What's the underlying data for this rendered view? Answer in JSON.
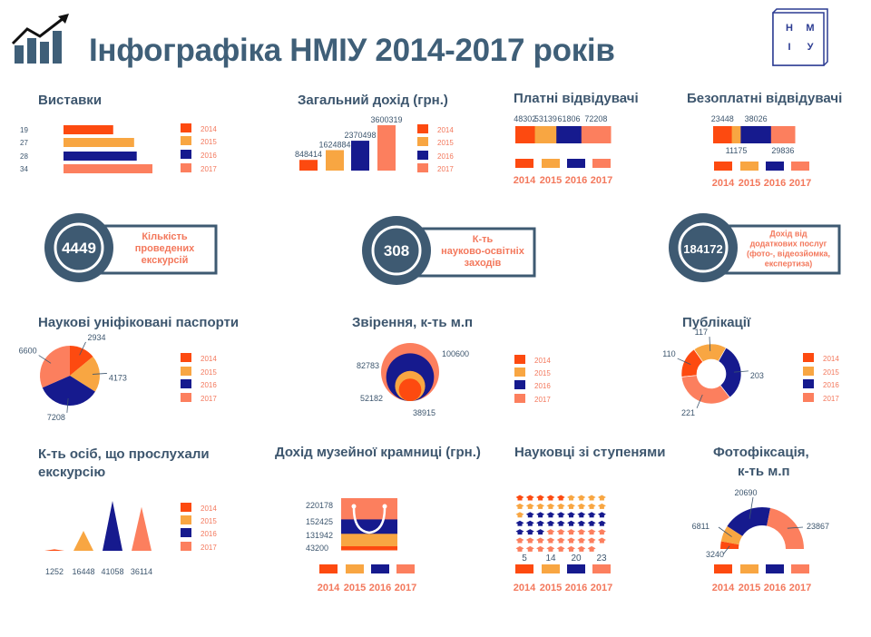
{
  "header": {
    "title": "Інфографіка НМІУ 2014-2017 років",
    "logo_letters": [
      "Н",
      "М",
      "І",
      "У"
    ],
    "icon": "growth-chart-icon"
  },
  "colors": {
    "series": [
      "#fd4a10",
      "#f8a642",
      "#161a8e",
      "#fc7f5e"
    ],
    "title_text": "#3d566e",
    "legend_text": "#f3785c",
    "badge": "#3e5a72"
  },
  "legend_labels": [
    "2014",
    "2015",
    "2016",
    "2017"
  ],
  "stats": [
    {
      "value": "4449",
      "lines": [
        "Кількість",
        "проведених",
        "екскурсій"
      ]
    },
    {
      "value": "308",
      "lines": [
        "К-ть",
        "науково-освітніх",
        "заходів"
      ]
    },
    {
      "value": "184172",
      "lines": [
        "Дохід від",
        "додаткових послуг",
        "(фото-, відеозйомка,",
        "експертиза)"
      ]
    }
  ],
  "chart_data": [
    {
      "id": "exhibitions",
      "type": "bar",
      "orientation": "horizontal",
      "title": "Виставки",
      "categories": [
        "2014",
        "2015",
        "2016",
        "2017"
      ],
      "values": [
        19,
        27,
        28,
        34
      ],
      "legend": "right"
    },
    {
      "id": "income",
      "type": "bar",
      "title": "Загальний дохід (грн.)",
      "categories": [
        "2014",
        "2015",
        "2016",
        "2017"
      ],
      "values": [
        848414,
        1624884,
        2370498,
        3600319
      ],
      "legend": "right"
    },
    {
      "id": "paid",
      "type": "bar",
      "stacked": true,
      "orientation": "horizontal",
      "title": "Платні відвідувачі",
      "categories": [
        "2014",
        "2015",
        "2016",
        "2017"
      ],
      "values": [
        48302,
        53139,
        61806,
        72208
      ],
      "legend": "bottom"
    },
    {
      "id": "free",
      "type": "bar",
      "stacked": true,
      "orientation": "horizontal",
      "title": "Безоплатні відвідувачі",
      "categories": [
        "2014",
        "2015",
        "2016",
        "2017"
      ],
      "values": [
        23448,
        11175,
        38026,
        29836
      ],
      "legend": "bottom"
    },
    {
      "id": "passports",
      "type": "pie",
      "title": "Наукові уніфіковані паспорти",
      "categories": [
        "2014",
        "2015",
        "2016",
        "2017"
      ],
      "values": [
        2934,
        4173,
        7208,
        6600
      ],
      "legend": "right"
    },
    {
      "id": "verification",
      "type": "pie",
      "style": "nested-circles",
      "title": "Звірення, к-ть м.п",
      "categories": [
        "2014",
        "2015",
        "2016",
        "2017"
      ],
      "values": [
        38915,
        52182,
        82783,
        100600
      ],
      "legend": "right"
    },
    {
      "id": "publications",
      "type": "pie",
      "style": "donut",
      "title": "Публікації",
      "categories": [
        "2014",
        "2015",
        "2016",
        "2017"
      ],
      "values": [
        110,
        117,
        203,
        221
      ],
      "legend": "right"
    },
    {
      "id": "listeners",
      "type": "bar",
      "style": "triangles",
      "title": [
        "К-ть осіб, що прослухали",
        "екскурсію"
      ],
      "categories": [
        "2014",
        "2015",
        "2016",
        "2017"
      ],
      "values": [
        1252,
        16448,
        41058,
        36114
      ],
      "legend": "right"
    },
    {
      "id": "shop",
      "type": "bar",
      "stacked": true,
      "style": "shopping-bag",
      "title": "Дохід музейної крамниці (грн.)",
      "categories": [
        "2014",
        "2015",
        "2016",
        "2017"
      ],
      "values": [
        43200,
        131942,
        152425,
        220178
      ],
      "legend": "bottom"
    },
    {
      "id": "scientists",
      "type": "bar",
      "style": "pictograph-graduation-caps",
      "title": "Науковці зі ступенями",
      "categories": [
        "2014",
        "2015",
        "2016",
        "2017"
      ],
      "values": [
        5,
        14,
        20,
        23
      ],
      "legend": "bottom"
    },
    {
      "id": "photo",
      "type": "pie",
      "style": "semi-donut",
      "title": [
        "Фотофіксація,",
        "к-ть м.п"
      ],
      "categories": [
        "2014",
        "2015",
        "2016",
        "2017"
      ],
      "values": [
        3240,
        6811,
        20690,
        23867
      ],
      "legend": "bottom"
    }
  ]
}
